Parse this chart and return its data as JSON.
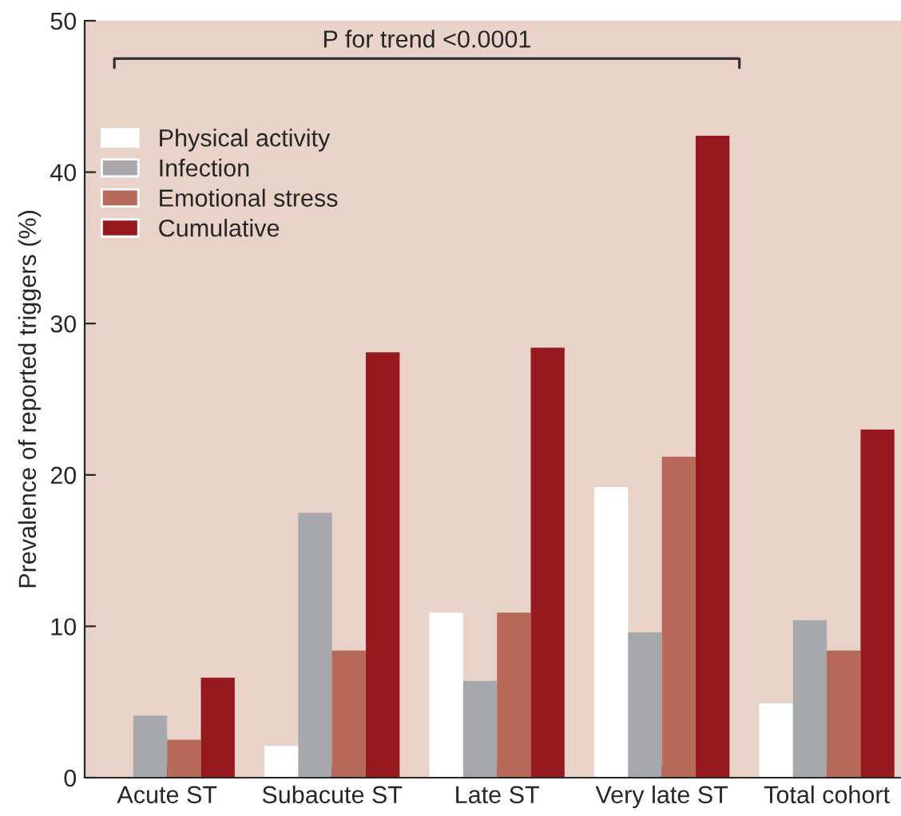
{
  "chart_data": {
    "type": "bar",
    "ylabel": "Prevalence of reported triggers (%)",
    "categories": [
      "Acute ST",
      "Subacute ST",
      "Late ST",
      "Very late ST",
      "Total cohort"
    ],
    "series": [
      {
        "name": "Physical activity",
        "color": "#ffffff",
        "values": [
          0,
          2.1,
          10.9,
          19.2,
          4.9
        ]
      },
      {
        "name": "Infection",
        "color": "#a7a8ab",
        "values": [
          4.1,
          17.5,
          6.4,
          9.6,
          10.4
        ]
      },
      {
        "name": "Emotional stress",
        "color": "#b86a5a",
        "values": [
          2.5,
          8.4,
          10.9,
          21.2,
          8.4
        ]
      },
      {
        "name": "Cumulative",
        "color": "#96191f",
        "values": [
          6.6,
          28.1,
          28.4,
          42.4,
          23.0
        ]
      }
    ],
    "ylim": [
      0,
      50
    ],
    "yticks": [
      0,
      10,
      20,
      30,
      40,
      50
    ],
    "grid": false,
    "legend": "top left",
    "annotations": [
      "P for trend <0.0001"
    ]
  }
}
